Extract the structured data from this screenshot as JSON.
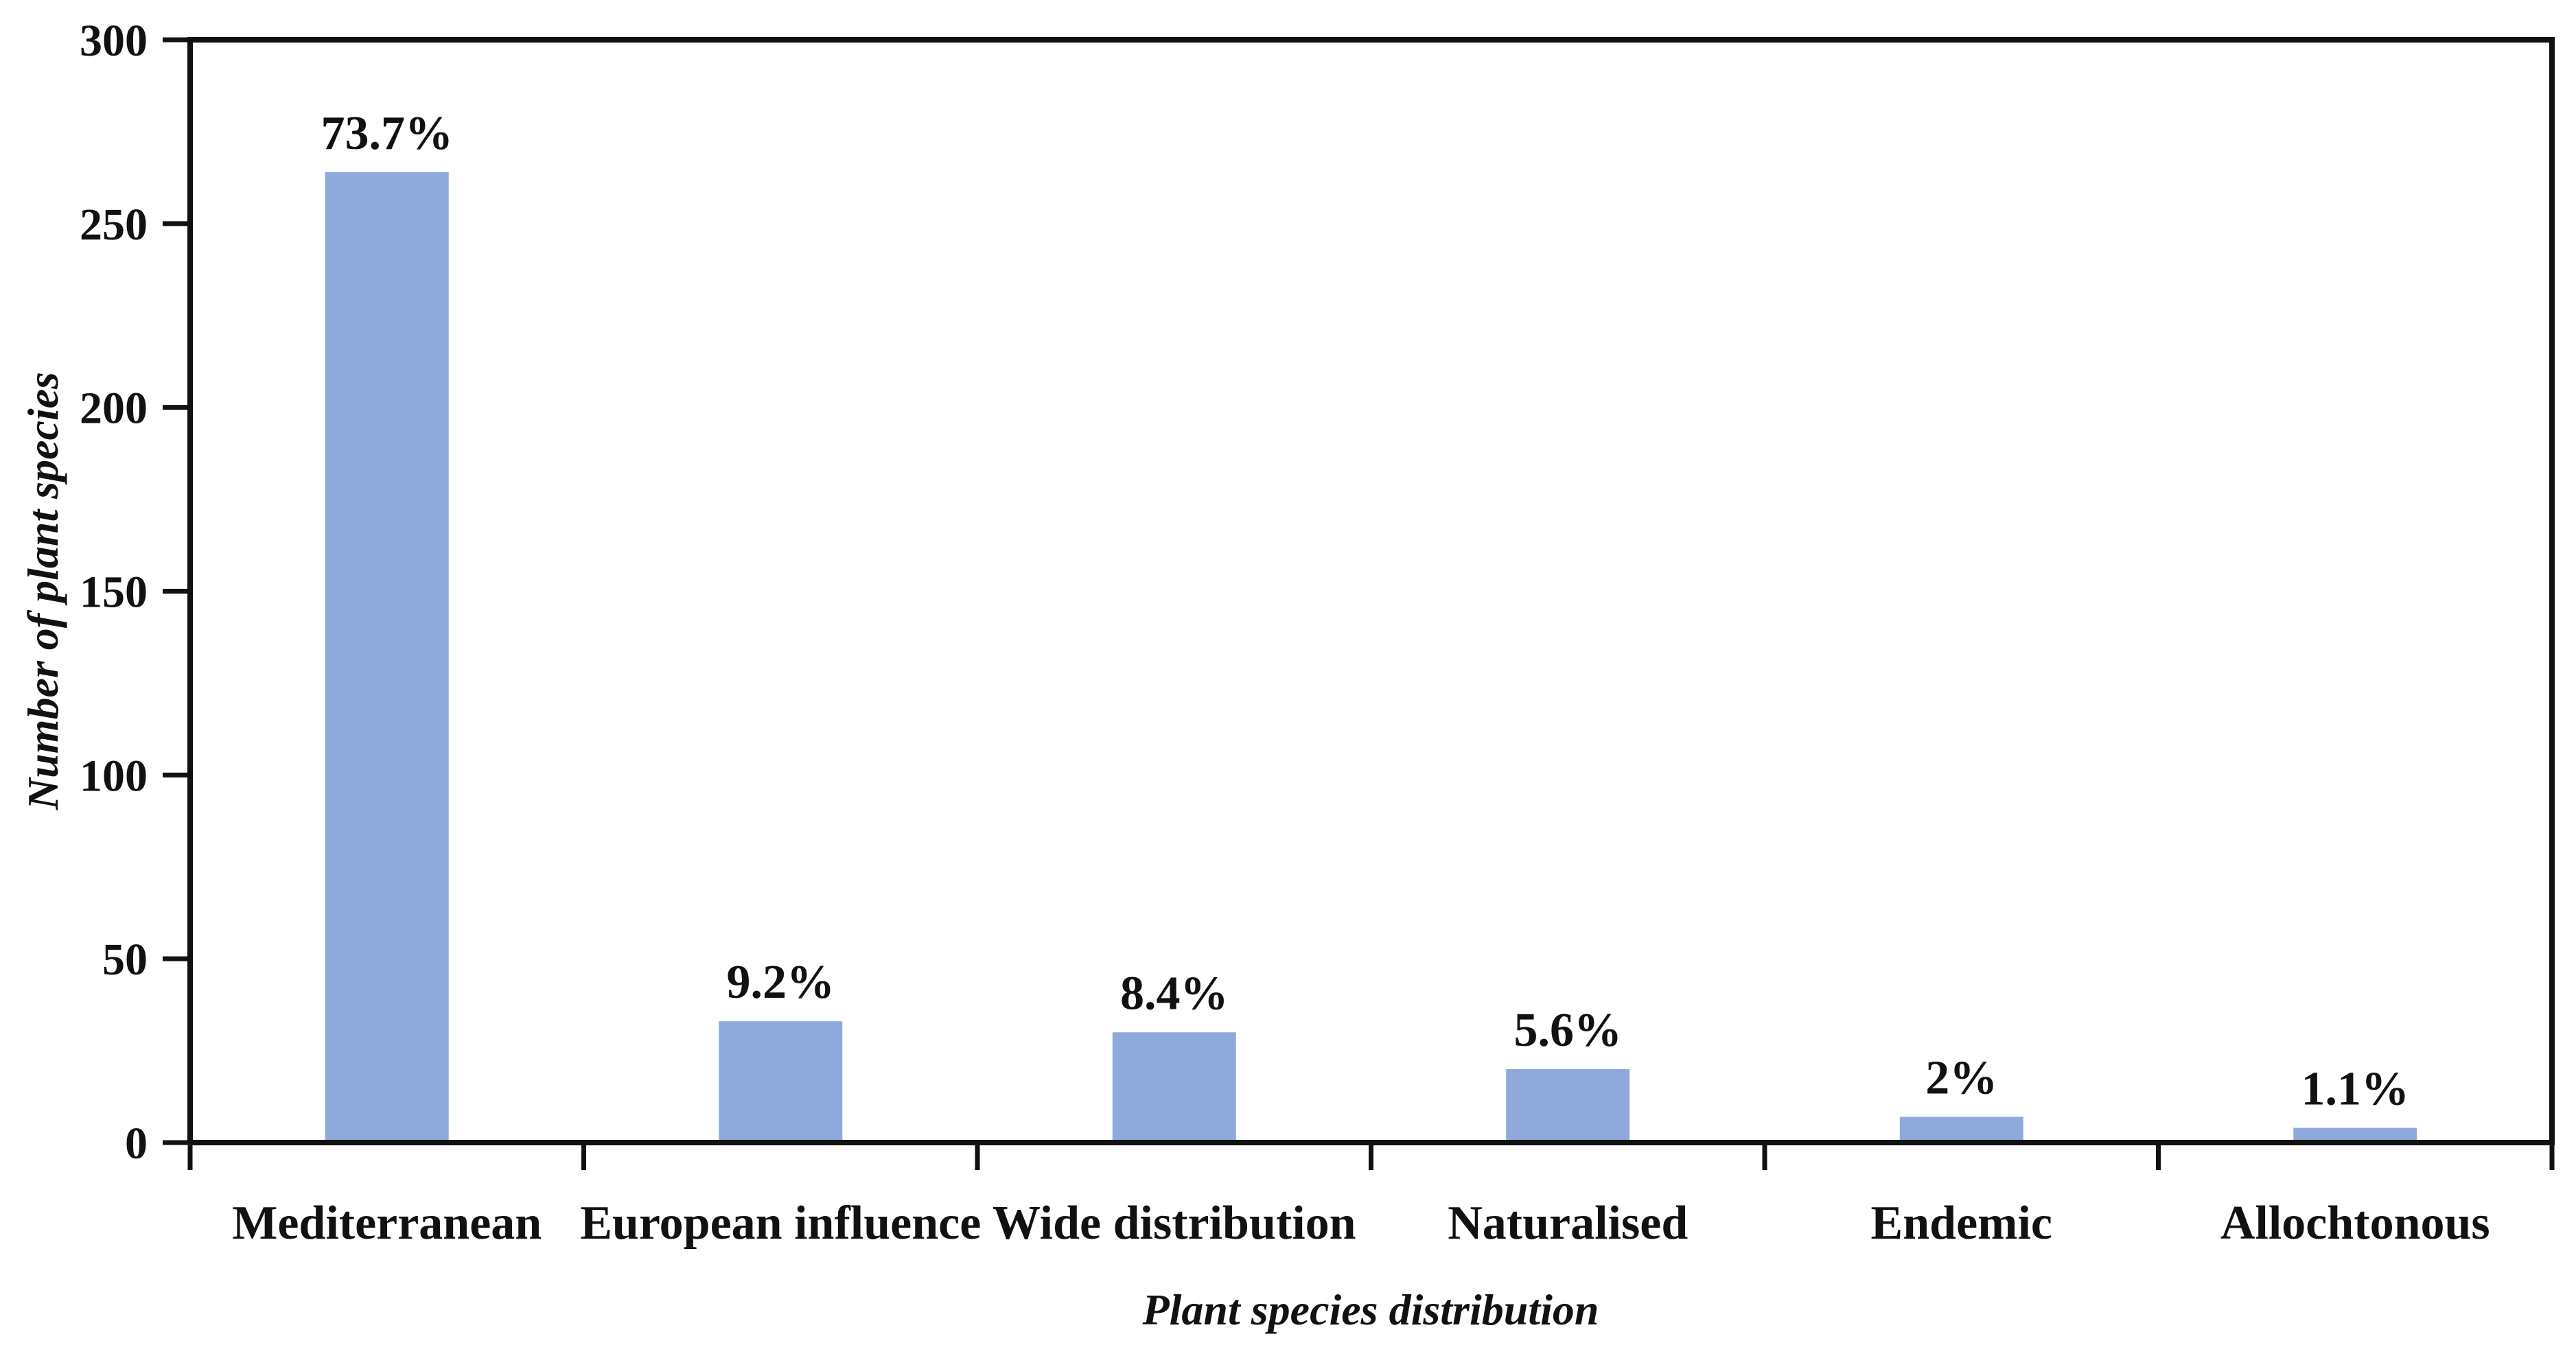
{
  "chart_data": {
    "type": "bar",
    "title": "",
    "categories": [
      "Mediterranean",
      "European influence",
      "Wide distribution",
      "Naturalised",
      "Endemic",
      "Allochtonous"
    ],
    "values": [
      264,
      33,
      30,
      20,
      7,
      4
    ],
    "bar_labels": [
      "73.7%",
      "9.2%",
      "8.4%",
      "5.6%",
      "2%",
      "1.1%"
    ],
    "xlabel": "Plant species distribution",
    "ylabel": "Number of plant species",
    "ylim": [
      0,
      300
    ],
    "yticks": [
      0,
      50,
      100,
      150,
      200,
      250,
      300
    ],
    "grid": false,
    "legend": false,
    "bar_color": "#8FA9DC",
    "axis_color": "#111111",
    "text_color": "#111111",
    "background_color": "#FFFFFF"
  }
}
